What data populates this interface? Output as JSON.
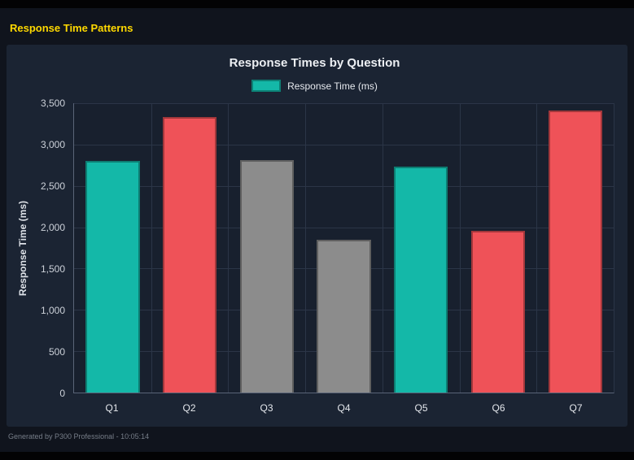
{
  "header": {
    "title": "Response Time Patterns"
  },
  "chart_data": {
    "type": "bar",
    "title": "Response Times by Question",
    "legend_label": "Response Time (ms)",
    "legend_position": "top",
    "categories": [
      "Q1",
      "Q2",
      "Q3",
      "Q4",
      "Q5",
      "Q6",
      "Q7"
    ],
    "values": [
      2800,
      3330,
      2810,
      1850,
      2730,
      1960,
      3410
    ],
    "bar_colors": [
      "#14b8a8",
      "#ef5258",
      "#8c8c8c",
      "#8c8c8c",
      "#14b8a8",
      "#ef5258",
      "#ef5258"
    ],
    "xlabel": "",
    "ylabel": "Response Time (ms)",
    "ylim": [
      0,
      3500
    ],
    "yticks": [
      0,
      500,
      1000,
      1500,
      2000,
      2500,
      3000,
      3500
    ],
    "ytick_labels": [
      "0",
      "500",
      "1,000",
      "1,500",
      "2,000",
      "2,500",
      "3,000",
      "3,500"
    ],
    "grid": true
  },
  "footer": {
    "text": "Generated by P300 Professional - 10:05:14"
  },
  "colors": {
    "page_bg": "#10141d",
    "panel_bg": "#1b2433",
    "plot_bg": "#18202e",
    "grid": "#2b3547",
    "axis": "#5a6478",
    "teal": "#14b8a8",
    "red": "#ef5258",
    "gray": "#8c8c8c",
    "header_yellow": "#ffd900"
  }
}
